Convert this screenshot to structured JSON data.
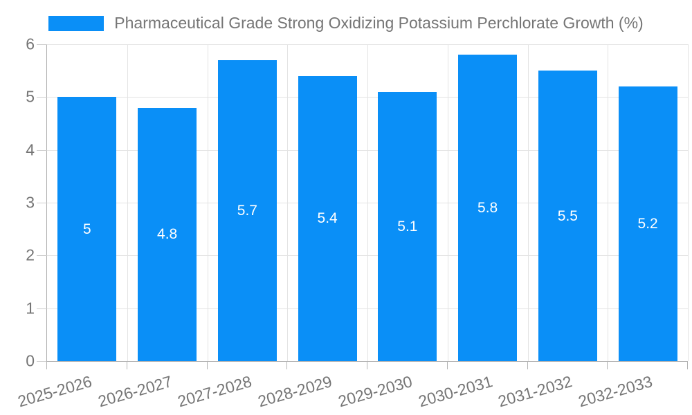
{
  "chart_data": {
    "type": "bar",
    "title": "Pharmaceutical Grade Strong Oxidizing Potassium Perchlorate Growth (%)",
    "legend": "Pharmaceutical Grade Strong Oxidizing Potassium Perchlorate Growth (%)",
    "legend_position": "top",
    "categories": [
      "2025-2026",
      "2026-2027",
      "2027-2028",
      "2028-2029",
      "2029-2030",
      "2030-2031",
      "2031-2032",
      "2032-2033"
    ],
    "values": [
      5,
      4.8,
      5.7,
      5.4,
      5.1,
      5.8,
      5.5,
      5.2
    ],
    "value_labels": [
      "5",
      "4.8",
      "5.7",
      "5.4",
      "5.1",
      "5.8",
      "5.5",
      "5.2"
    ],
    "xlabel": "",
    "ylabel": "",
    "ylim": [
      0,
      6
    ],
    "ytick_labels": [
      "0",
      "1",
      "2",
      "3",
      "4",
      "5",
      "6"
    ],
    "grid": true,
    "bar_color": "#0a8ff7",
    "value_label_color": "#ffffff",
    "axis_text_color": "#757575",
    "gridline_color": "#e3e3e3"
  }
}
